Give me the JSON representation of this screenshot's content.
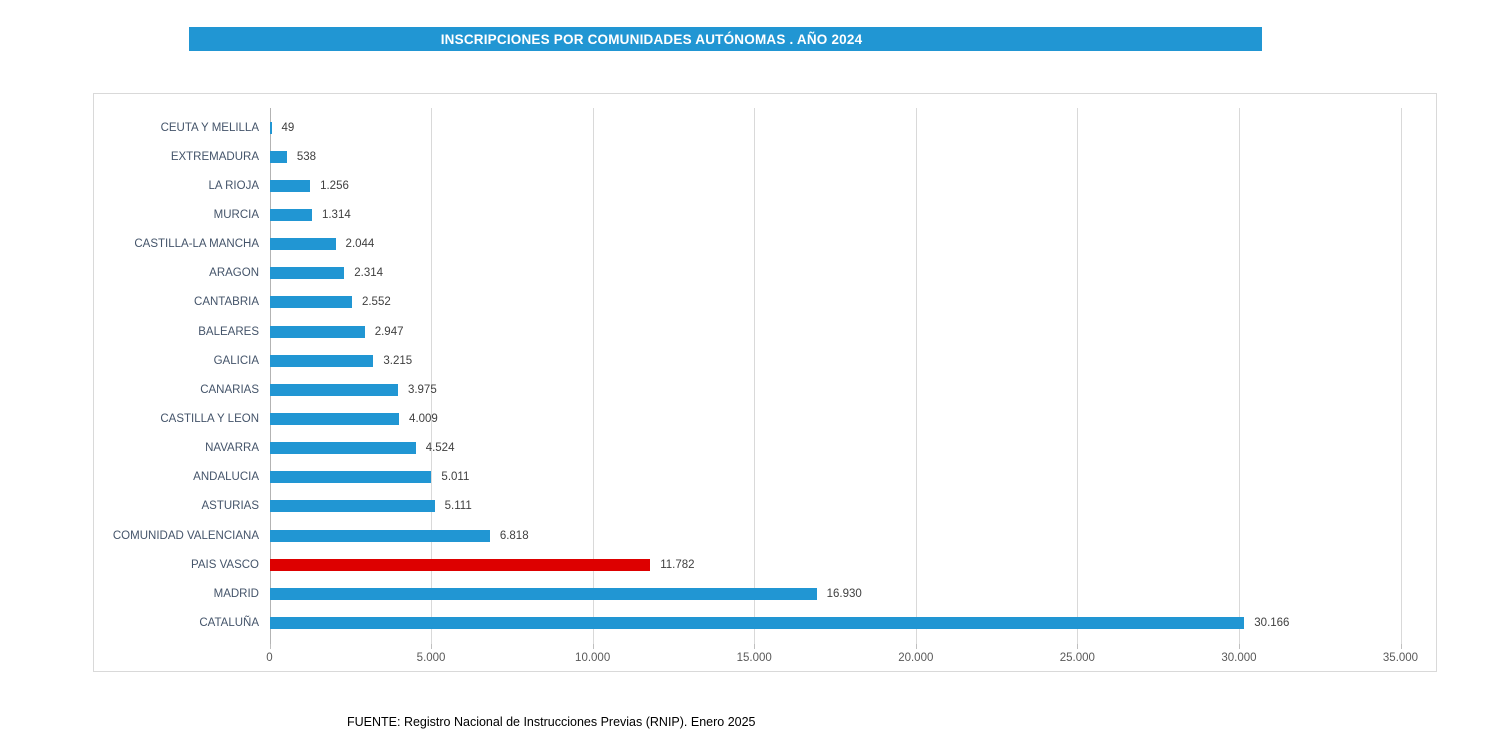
{
  "banner": {
    "title": "INSCRIPCIONES POR COMUNIDADES AUTÓNOMAS . AÑO 2024",
    "color": "#2196d3",
    "text_color": "#ffffff"
  },
  "footer": {
    "source": "FUENTE: Registro Nacional de Instrucciones Previas (RNIP). Enero 2025"
  },
  "chart_data": {
    "type": "bar",
    "orientation": "horizontal",
    "title": "INSCRIPCIONES POR COMUNIDADES AUTÓNOMAS . AÑO 2024",
    "xlabel": "",
    "ylabel": "",
    "xlim": [
      0,
      35000
    ],
    "x_tick_interval": 5000,
    "x_tick_labels": [
      "0",
      "5.000",
      "10.000",
      "15.000",
      "20.000",
      "25.000",
      "30.000",
      "35.000"
    ],
    "grid": true,
    "legend": false,
    "categories": [
      "CEUTA Y MELILLA",
      "EXTREMADURA",
      "LA RIOJA",
      "MURCIA",
      "CASTILLA-LA MANCHA",
      "ARAGON",
      "CANTABRIA",
      "BALEARES",
      "GALICIA",
      "CANARIAS",
      "CASTILLA Y LEON",
      "NAVARRA",
      "ANDALUCIA",
      "ASTURIAS",
      "COMUNIDAD VALENCIANA",
      "PAIS VASCO",
      "MADRID",
      "CATALUÑA"
    ],
    "values": [
      49,
      538,
      1256,
      1314,
      2044,
      2314,
      2552,
      2947,
      3215,
      3975,
      4009,
      4524,
      5011,
      5111,
      6818,
      11782,
      16930,
      30166
    ],
    "value_labels": [
      "49",
      "538",
      "1.256",
      "1.314",
      "2.044",
      "2.314",
      "2.552",
      "2.947",
      "3.215",
      "3.975",
      "4.009",
      "4.524",
      "5.011",
      "5.111",
      "6.818",
      "11.782",
      "16.930",
      "30.166"
    ],
    "bar_color": "#2196d3",
    "highlight_color": "#dd0000",
    "highlight_category": "PAIS VASCO",
    "highlight_index": 15
  }
}
